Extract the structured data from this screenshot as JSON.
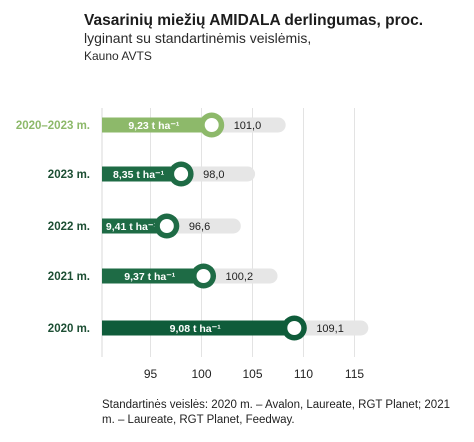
{
  "header": {
    "title": "Vasarinių miežių AMIDALA derlingumas, proc.",
    "subtitle": "lyginant su standartinėmis veislėmis,",
    "source": "Kauno AVTS"
  },
  "footnote": "Standartinės veislės: 2020 m. – Avalon, Laureate, RGT Planet; 2021 m. – Laureate, RGT Planet, Feedway.",
  "colors": {
    "light_green": "#8db96a",
    "dark_green": "#0f5c3a",
    "track": "#e6e6e6",
    "label_light": "#8db96a",
    "label_dark": "#1d4f34"
  },
  "chart_data": {
    "type": "bar",
    "orientation": "horizontal",
    "categories": [
      "2020–2023 m.",
      "2023 m.",
      "2022 m.",
      "2021 m.",
      "2020 m."
    ],
    "values": [
      101.0,
      98.0,
      96.6,
      100.2,
      109.1
    ],
    "value_labels": [
      "101,0",
      "98,0",
      "96,6",
      "100,2",
      "109,1"
    ],
    "yield_labels": [
      "9,23 t ha⁻¹",
      "8,35 t ha⁻¹",
      "9,41 t ha⁻¹",
      "9,37 t ha⁻¹",
      "9,08 t ha⁻¹"
    ],
    "bar_colors": [
      "#8db96a",
      "#1e6b45",
      "#1e6b45",
      "#1e6b45",
      "#0f5c3a"
    ],
    "x_ticks": [
      95,
      100,
      105,
      110,
      115
    ],
    "x_tick_labels": [
      "95",
      "100",
      "105",
      "110",
      "115"
    ],
    "xlim": [
      90,
      117
    ],
    "grid": true
  }
}
